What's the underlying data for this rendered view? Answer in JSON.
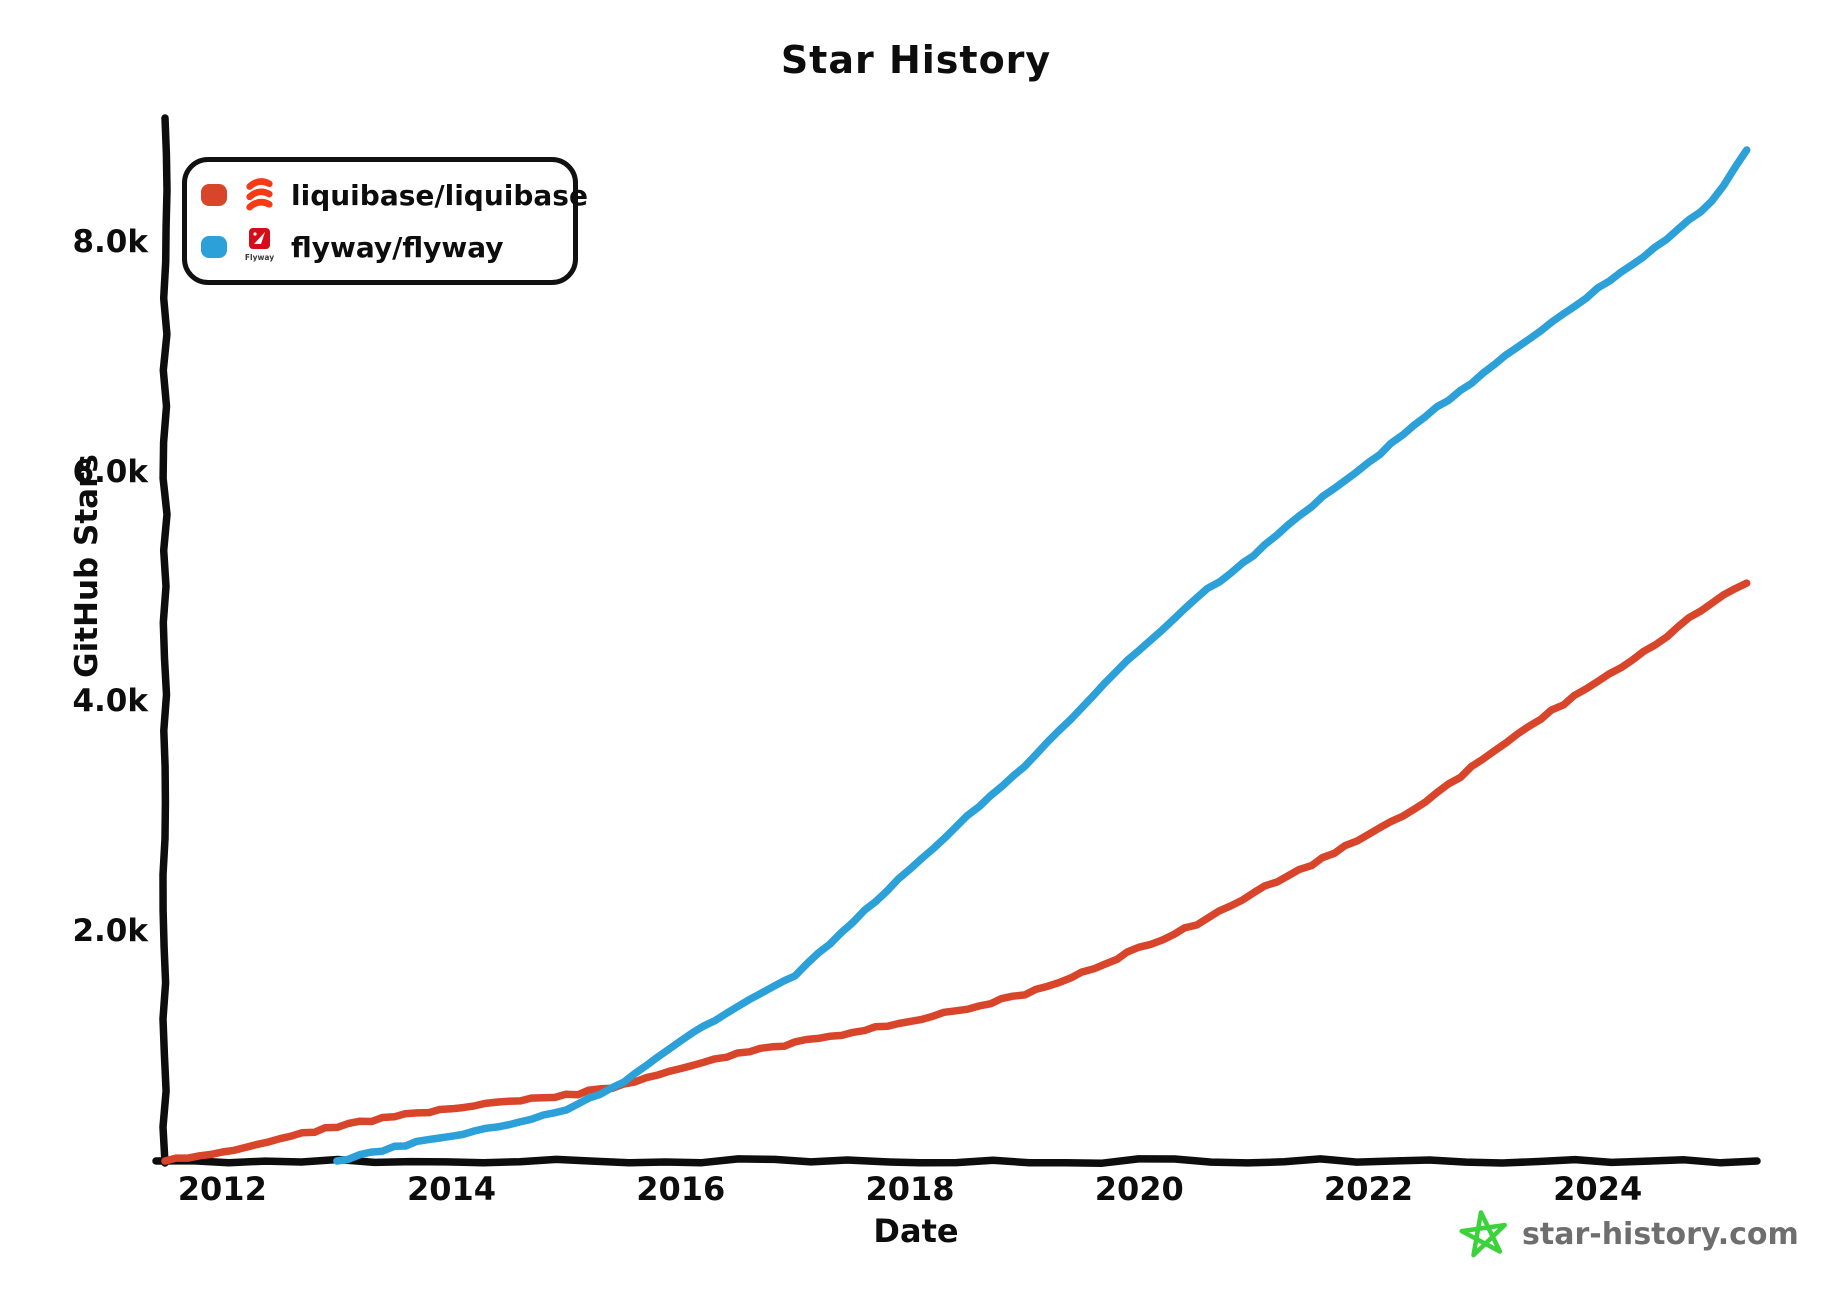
{
  "title": "Star History",
  "legend": [
    {
      "label": "liquibase/liquibase",
      "color": "#d9452a",
      "logo": "liquibase-logo"
    },
    {
      "label": "flyway/flyway",
      "color": "#2ba0d9",
      "logo": "flyway-logo",
      "logo_text": "Flyway"
    }
  ],
  "footer": {
    "site": "star-history.com",
    "star_color": "#3bd23c",
    "text_color": "#6e6e6e"
  },
  "colors": {
    "axis": "#0d0d0d",
    "liquibase_line": "#d9452a",
    "flyway_line": "#2ba0d9",
    "liquibase_logo": "#f43b16",
    "flyway_logo_red": "#d60c18"
  },
  "chart_data": {
    "type": "line",
    "title": "Star History",
    "xlabel": "Date",
    "ylabel": "GitHub Stars",
    "xlim": [
      2011.5,
      2025.39
    ],
    "ylim": [
      0,
      9000
    ],
    "x_ticks": [
      2012,
      2014,
      2016,
      2018,
      2020,
      2022,
      2024
    ],
    "x_tick_labels": [
      "2012",
      "2014",
      "2016",
      "2018",
      "2020",
      "2022",
      "2024"
    ],
    "y_ticks": [
      2000,
      4000,
      6000,
      8000
    ],
    "y_tick_labels": [
      "2.0k",
      "4.0k",
      "6.0k",
      "8.0k"
    ],
    "grid": false,
    "legend_position": "top-left",
    "style": "hand-drawn-xkcd",
    "series": [
      {
        "name": "liquibase/liquibase",
        "color": "#d9452a",
        "points": [
          [
            2011.5,
            0
          ],
          [
            2012,
            80
          ],
          [
            2012.5,
            200
          ],
          [
            2013,
            300
          ],
          [
            2013.5,
            390
          ],
          [
            2014,
            455
          ],
          [
            2014.5,
            515
          ],
          [
            2015,
            570
          ],
          [
            2015.5,
            660
          ],
          [
            2016,
            810
          ],
          [
            2016.5,
            930
          ],
          [
            2017,
            1030
          ],
          [
            2017.5,
            1120
          ],
          [
            2018,
            1220
          ],
          [
            2018.5,
            1330
          ],
          [
            2019,
            1450
          ],
          [
            2019.5,
            1640
          ],
          [
            2020,
            1850
          ],
          [
            2020.5,
            2060
          ],
          [
            2021,
            2340
          ],
          [
            2021.5,
            2580
          ],
          [
            2022,
            2840
          ],
          [
            2022.5,
            3120
          ],
          [
            2023,
            3500
          ],
          [
            2023.5,
            3850
          ],
          [
            2024,
            4170
          ],
          [
            2024.5,
            4500
          ],
          [
            2025,
            4870
          ],
          [
            2025.3,
            5030
          ]
        ]
      },
      {
        "name": "flyway/flyway",
        "color": "#2ba0d9",
        "points": [
          [
            2013,
            0
          ],
          [
            2013.5,
            120
          ],
          [
            2014,
            220
          ],
          [
            2014.5,
            320
          ],
          [
            2015,
            450
          ],
          [
            2015.5,
            680
          ],
          [
            2016,
            1050
          ],
          [
            2016.5,
            1350
          ],
          [
            2017,
            1620
          ],
          [
            2017.5,
            2080
          ],
          [
            2018,
            2540
          ],
          [
            2018.5,
            3000
          ],
          [
            2019,
            3440
          ],
          [
            2019.5,
            3950
          ],
          [
            2020,
            4450
          ],
          [
            2020.5,
            4900
          ],
          [
            2021,
            5270
          ],
          [
            2021.5,
            5700
          ],
          [
            2022,
            6080
          ],
          [
            2022.5,
            6480
          ],
          [
            2023,
            6850
          ],
          [
            2023.5,
            7230
          ],
          [
            2024,
            7590
          ],
          [
            2024.5,
            7950
          ],
          [
            2025,
            8350
          ],
          [
            2025.3,
            8800
          ]
        ]
      }
    ]
  }
}
